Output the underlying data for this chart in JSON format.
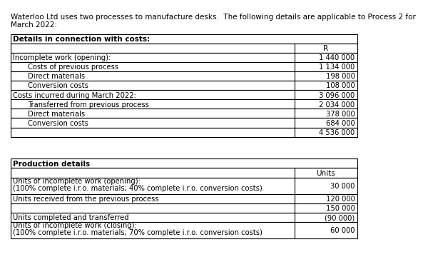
{
  "intro_text_line1": "Waterloo Ltd uses two processes to manufacture desks.  The following details are applicable to Process 2 for",
  "intro_text_line2": "March 2022:",
  "table1_header": "Details in connection with costs:",
  "table1_col_header": "R",
  "table1_rows": [
    {
      "label": "Incomplete work (opening):",
      "value": "1 440 000",
      "indent": 0
    },
    {
      "label": "Costs of previous process",
      "value": "1 134 000",
      "indent": 1
    },
    {
      "label": "Direct materials",
      "value": "198 000",
      "indent": 1
    },
    {
      "label": "Conversion costs",
      "value": "108 000",
      "indent": 1
    },
    {
      "label": "Costs incurred during March 2022:",
      "value": "3 096 000",
      "indent": 0
    },
    {
      "label": "Transferred from previous process",
      "value": "2 034 000",
      "indent": 1
    },
    {
      "label": "Direct materials",
      "value": "378 000",
      "indent": 1
    },
    {
      "label": "Conversion costs",
      "value": "684 000",
      "indent": 1
    },
    {
      "label": "",
      "value": "4 536 000",
      "indent": 0
    }
  ],
  "table2_header": "Production details",
  "table2_col_header": "Units",
  "table2_rows": [
    {
      "label": "Units of incomplete work (opening):\n(100% complete i.r.o. materials; 40% complete i.r.o. conversion costs)",
      "value": "30 000",
      "double": true
    },
    {
      "label": "Units received from the previous process",
      "value": "120 000",
      "double": false
    },
    {
      "label": "",
      "value": "150 000",
      "double": false
    },
    {
      "label": "Units completed and transferred",
      "value": "(90 000)",
      "double": false
    },
    {
      "label": "Units of incomplete work (closing):\n(100% complete i.r.o. materials; 70% complete i.r.o. conversion costs)",
      "value": "60 000",
      "double": true
    }
  ],
  "bg_color": "#ffffff",
  "border_color": "#000000",
  "text_color": "#000000",
  "font_size": 7.2,
  "header_font_size": 7.5,
  "intro_font_size": 7.5
}
